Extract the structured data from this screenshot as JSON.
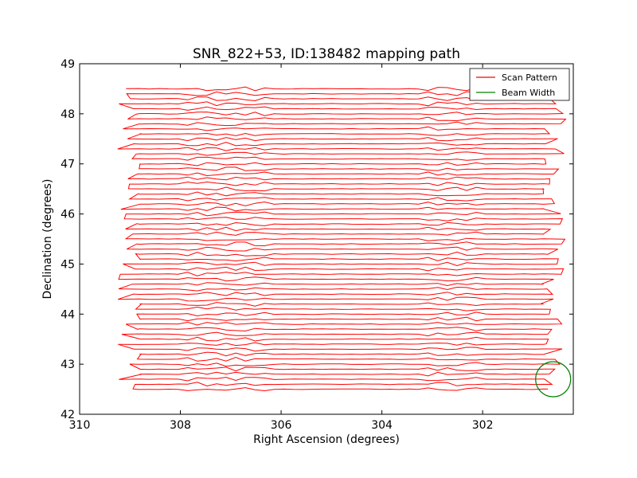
{
  "chart_data": {
    "type": "line",
    "title": "SNR_822+53, ID:138482 mapping path",
    "xlabel": "Right Ascension (degrees)",
    "ylabel": "Declination (degrees)",
    "xlim": [
      310.0,
      300.2
    ],
    "ylim": [
      42.0,
      49.0
    ],
    "x_inverted": true,
    "xticks": [
      310,
      308,
      306,
      304,
      302
    ],
    "yticks": [
      42,
      43,
      44,
      45,
      46,
      47,
      48,
      49
    ],
    "grid": false,
    "legend_placement": "top-right",
    "scan": {
      "ra_start": 309.0,
      "ra_end": 300.6,
      "dec_start": 42.5,
      "dec_end": 48.5,
      "dec_step": 0.1,
      "turnaround_ra": [
        307.1,
        302.6
      ]
    },
    "series": [
      {
        "name": "Scan Pattern",
        "color": "#ff0000"
      },
      {
        "name": "Beam Width",
        "color": "#008000"
      }
    ],
    "beam": {
      "ra": 300.6,
      "dec": 42.7,
      "radius_deg": 0.35
    }
  }
}
